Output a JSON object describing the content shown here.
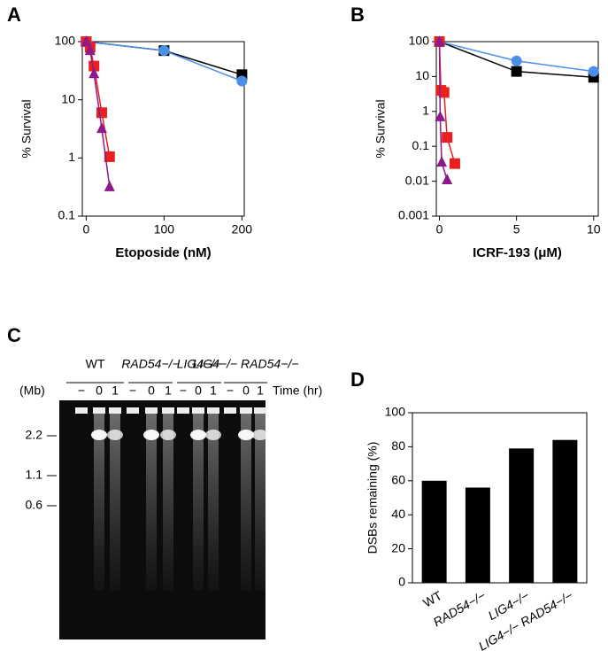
{
  "chart_data": [
    {
      "type": "line",
      "panel_label": "A",
      "ylabel": "% Survival",
      "xlabel": "Etoposide (nM)",
      "log_y": true,
      "xlim": [
        -5,
        203
      ],
      "xticks": [
        0,
        100,
        200
      ],
      "ylim": [
        0.1,
        100
      ],
      "yticks": [
        0.1,
        1,
        10,
        100
      ],
      "series": [
        {
          "color": "#000000",
          "marker": "square",
          "x": [
            0,
            100,
            200
          ],
          "values": [
            100,
            70,
            27
          ]
        },
        {
          "color": "#4a8fe8",
          "marker": "circle",
          "x": [
            0,
            100,
            200
          ],
          "values": [
            100,
            70,
            21
          ]
        },
        {
          "color": "#e8201f",
          "marker": "square",
          "x": [
            0,
            5,
            10,
            20,
            30
          ],
          "values": [
            100,
            80,
            38,
            6,
            1.05
          ]
        },
        {
          "color": "#8b1a8c",
          "marker": "triangle",
          "x": [
            0,
            5,
            10,
            20,
            30
          ],
          "values": [
            100,
            70,
            28,
            3.2,
            0.32
          ]
        }
      ]
    },
    {
      "type": "line",
      "panel_label": "B",
      "ylabel": "% Survival",
      "xlabel": "ICRF-193 (μM)",
      "log_y": true,
      "xlim": [
        -0.2,
        10.3
      ],
      "xticks": [
        0,
        5,
        10
      ],
      "ylim": [
        0.001,
        100
      ],
      "yticks": [
        0.001,
        0.01,
        0.1,
        1,
        10,
        100
      ],
      "series": [
        {
          "color": "#000000",
          "marker": "square",
          "x": [
            0,
            5,
            10
          ],
          "values": [
            100,
            14,
            9.5
          ]
        },
        {
          "color": "#4a8fe8",
          "marker": "circle",
          "x": [
            0,
            5,
            10
          ],
          "values": [
            100,
            28,
            14
          ]
        },
        {
          "color": "#e8201f",
          "marker": "square",
          "x": [
            0,
            0.1,
            0.3,
            0.5,
            1
          ],
          "values": [
            100,
            4,
            3.5,
            0.18,
            0.032
          ]
        },
        {
          "color": "#8b1a8c",
          "marker": "triangle",
          "x": [
            0,
            0.05,
            0.15,
            0.5
          ],
          "values": [
            100,
            0.7,
            0.035,
            0.011
          ]
        }
      ]
    },
    {
      "type": "bar",
      "panel_label": "D",
      "ylabel": "DSBs remaining (%)",
      "color": "#000000",
      "categories": [
        "WT",
        "RAD54−/−",
        "LIG4−/−",
        "LIG4−/− RAD54−/−"
      ],
      "values": [
        60,
        56,
        79,
        84
      ],
      "ylim": [
        0,
        100
      ],
      "yticks": [
        0,
        20,
        40,
        60,
        80,
        100
      ]
    }
  ],
  "gel": {
    "panel_label": "C",
    "groups": [
      "WT",
      "RAD54−/−",
      "LIG4−/−",
      "LIG4−/− RAD54−/−"
    ],
    "lanes": [
      "−",
      "0",
      "1",
      "−",
      "0",
      "1",
      "−",
      "0",
      "1",
      "−",
      "0",
      "1"
    ],
    "time_label": "Time (hr)",
    "size_unit": "(Mb)",
    "markers": [
      "2.2",
      "1.1",
      "0.6"
    ]
  }
}
